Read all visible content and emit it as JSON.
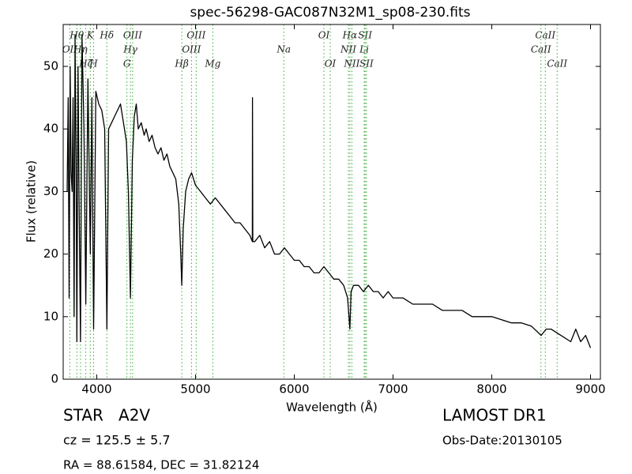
{
  "chart_data": {
    "type": "line",
    "title": "spec-56298-GAC087N32M1_sp08-230.fits",
    "x_label": "Wavelength (Å)",
    "y_label": "Flux (relative)",
    "xlim": [
      3660,
      9100
    ],
    "ylim": [
      0,
      56.7
    ],
    "xticks": [
      4000,
      5000,
      6000,
      7000,
      8000,
      9000
    ],
    "yticks": [
      0,
      10,
      20,
      30,
      40,
      50
    ],
    "color": "#000000",
    "line_color": "#33aa33",
    "x": [
      3700,
      3710,
      3720,
      3730,
      3740,
      3750,
      3760,
      3770,
      3780,
      3790,
      3798,
      3810,
      3820,
      3835,
      3850,
      3870,
      3889,
      3910,
      3934,
      3950,
      3968,
      3990,
      4020,
      4050,
      4080,
      4102,
      4120,
      4150,
      4180,
      4210,
      4240,
      4270,
      4300,
      4320,
      4341,
      4360,
      4380,
      4400,
      4420,
      4450,
      4480,
      4500,
      4530,
      4560,
      4590,
      4620,
      4650,
      4680,
      4710,
      4740,
      4770,
      4800,
      4830,
      4850,
      4861,
      4875,
      4900,
      4930,
      4960,
      5000,
      5050,
      5100,
      5150,
      5200,
      5250,
      5300,
      5350,
      5400,
      5450,
      5500,
      5550,
      5575,
      5577,
      5580,
      5600,
      5650,
      5700,
      5750,
      5800,
      5850,
      5900,
      5950,
      6000,
      6050,
      6100,
      6150,
      6200,
      6250,
      6300,
      6350,
      6400,
      6450,
      6500,
      6540,
      6563,
      6575,
      6600,
      6650,
      6700,
      6750,
      6800,
      6850,
      6900,
      6950,
      7000,
      7100,
      7200,
      7300,
      7400,
      7500,
      7600,
      7700,
      7800,
      7900,
      8000,
      8100,
      8200,
      8300,
      8400,
      8500,
      8550,
      8600,
      8700,
      8800,
      8850,
      8900,
      8950,
      9000
    ],
    "values": [
      30,
      45,
      13,
      50,
      33,
      30,
      45,
      10,
      55,
      35,
      6,
      50,
      30,
      6,
      55,
      40,
      12,
      48,
      20,
      45,
      8,
      46,
      44,
      43,
      40,
      8,
      40,
      41,
      42,
      43,
      44,
      41,
      38,
      30,
      13,
      35,
      42,
      44,
      40,
      41,
      39,
      40,
      38,
      39,
      37,
      36,
      37,
      35,
      36,
      34,
      33,
      32,
      28,
      20,
      15,
      24,
      30,
      32,
      33,
      31,
      30,
      29,
      28,
      29,
      28,
      27,
      26,
      25,
      25,
      24,
      23,
      22,
      45,
      22,
      22,
      23,
      21,
      22,
      20,
      20,
      21,
      20,
      19,
      19,
      18,
      18,
      17,
      17,
      18,
      17,
      16,
      16,
      15,
      13,
      8,
      14,
      15,
      15,
      14,
      15,
      14,
      14,
      13,
      14,
      13,
      13,
      12,
      12,
      12,
      11,
      11,
      11,
      10,
      10,
      10,
      9.5,
      9,
      9,
      8.5,
      7,
      8,
      8,
      7,
      6,
      8,
      6,
      7,
      5
    ],
    "line_labels": [
      [
        {
          "wavelength": 3798,
          "label": "Hθ"
        },
        {
          "wavelength": 3934,
          "label": "K"
        },
        {
          "wavelength": 4102,
          "label": "Hδ"
        },
        {
          "wavelength": 4363,
          "label": "OIII"
        },
        {
          "wavelength": 5007,
          "label": "OIII"
        },
        {
          "wavelength": 6300,
          "label": "OI"
        },
        {
          "wavelength": 6563,
          "label": "Hα"
        },
        {
          "wavelength": 6717,
          "label": "SII"
        },
        {
          "wavelength": 8542,
          "label": "CaII"
        }
      ],
      [
        {
          "wavelength": 3727,
          "label": "OII"
        },
        {
          "wavelength": 3835,
          "label": "Hη"
        },
        {
          "wavelength": 4341,
          "label": "Hγ"
        },
        {
          "wavelength": 4959,
          "label": "OIII"
        },
        {
          "wavelength": 5894,
          "label": "Na"
        },
        {
          "wavelength": 6548,
          "label": "NII"
        },
        {
          "wavelength": 6708,
          "label": "Li"
        },
        {
          "wavelength": 8498,
          "label": "CaII"
        }
      ],
      [
        {
          "wavelength": 3889,
          "label": "Hζ"
        },
        {
          "wavelength": 3968,
          "label": "H"
        },
        {
          "wavelength": 4305,
          "label": "G"
        },
        {
          "wavelength": 4861,
          "label": "Hβ"
        },
        {
          "wavelength": 5175,
          "label": "Mg"
        },
        {
          "wavelength": 6364,
          "label": "OI"
        },
        {
          "wavelength": 6583,
          "label": "NII"
        },
        {
          "wavelength": 6731,
          "label": "SII"
        },
        {
          "wavelength": 8662,
          "label": "CaII"
        }
      ]
    ]
  },
  "info": {
    "class": "STAR   A2V",
    "survey": "LAMOST DR1",
    "redshift": "cz = 125.5 ± 5.7",
    "obs_date": "Obs-Date:20130105",
    "coords": "RA = 88.61584, DEC = 31.82124"
  }
}
